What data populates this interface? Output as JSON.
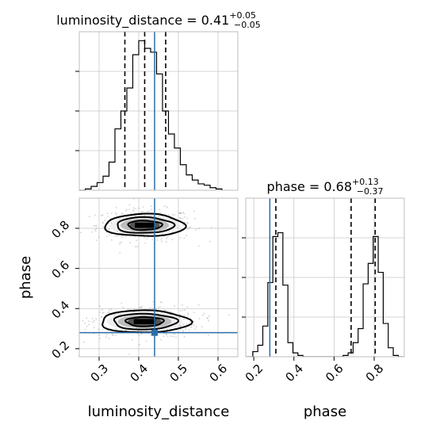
{
  "chart_data": {
    "type": "corner",
    "parameters": [
      "luminosity_distance",
      "phase"
    ],
    "truths": {
      "luminosity_distance": 0.44,
      "phase": 0.28
    },
    "panels": [
      {
        "kind": "histogram",
        "parameter": "luminosity_distance",
        "title_name": "luminosity_distance",
        "title_value": "0.41",
        "title_plus": "+0.05",
        "title_minus": "−0.05",
        "xlim": [
          0.25,
          0.65
        ],
        "quantiles": [
          0.365,
          0.415,
          0.468
        ],
        "bin_edges": [
          0.265,
          0.28,
          0.295,
          0.31,
          0.325,
          0.34,
          0.355,
          0.37,
          0.385,
          0.4,
          0.415,
          0.43,
          0.445,
          0.46,
          0.475,
          0.49,
          0.505,
          0.52,
          0.535,
          0.55,
          0.565,
          0.58,
          0.595,
          0.61
        ],
        "counts": [
          1,
          3,
          6,
          11,
          22,
          48,
          62,
          80,
          106,
          117,
          111,
          108,
          91,
          62,
          44,
          33,
          20,
          12,
          8,
          5,
          4,
          2,
          1
        ]
      },
      {
        "kind": "histogram",
        "parameter": "phase",
        "title_name": "phase",
        "title_value": "0.68",
        "title_plus": "+0.13",
        "title_minus": "−0.37",
        "xlim": [
          0.16,
          0.95
        ],
        "quantiles": [
          0.31,
          0.685,
          0.805
        ],
        "bin_edges": [
          0.17,
          0.195,
          0.22,
          0.245,
          0.27,
          0.295,
          0.32,
          0.345,
          0.37,
          0.395,
          0.42,
          0.445,
          0.47,
          0.495,
          0.52,
          0.545,
          0.57,
          0.595,
          0.62,
          0.645,
          0.67,
          0.695,
          0.72,
          0.745,
          0.77,
          0.795,
          0.82,
          0.845,
          0.87,
          0.895,
          0.92,
          0.945
        ],
        "counts": [
          0,
          4,
          9,
          24,
          58,
          94,
          97,
          56,
          11,
          3,
          1,
          0,
          0,
          0,
          0,
          0,
          0,
          0,
          0,
          1,
          3,
          11,
          22,
          57,
          73,
          94,
          66,
          26,
          7,
          1,
          0
        ]
      },
      {
        "kind": "2d",
        "x": "luminosity_distance",
        "y": "phase",
        "xlim": [
          0.25,
          0.65
        ],
        "ylim": [
          0.16,
          0.95
        ],
        "modes": [
          {
            "x": 0.415,
            "y": 0.815,
            "sx": 0.045,
            "sy": 0.03
          },
          {
            "x": 0.415,
            "y": 0.335,
            "sx": 0.05,
            "sy": 0.03
          }
        ]
      }
    ],
    "x_ticks": {
      "luminosity_distance": [
        "0.3",
        "0.4",
        "0.5",
        "0.6"
      ],
      "phase": [
        "0.2",
        "0.4",
        "0.6",
        "0.8"
      ]
    },
    "y_ticks": {
      "phase": [
        "0.2",
        "0.4",
        "0.6",
        "0.8"
      ]
    },
    "xlabels": [
      "luminosity_distance",
      "phase"
    ],
    "ylabel": "phase",
    "grid": true
  }
}
